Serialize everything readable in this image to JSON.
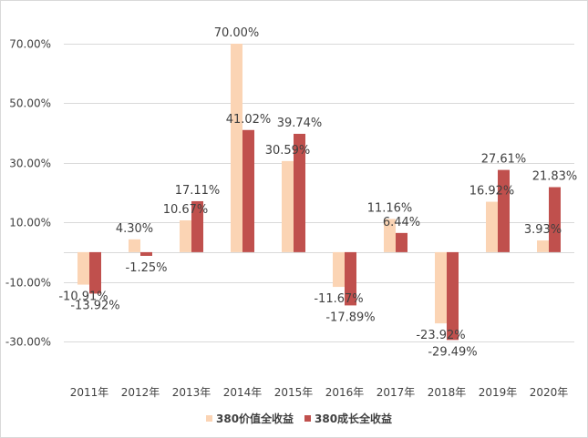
{
  "chart_data": {
    "type": "bar",
    "title": "",
    "xlabel": "",
    "ylabel": "",
    "categories": [
      "2011年",
      "2012年",
      "2013年",
      "2014年",
      "2015年",
      "2016年",
      "2017年",
      "2018年",
      "2019年",
      "2020年"
    ],
    "series": [
      {
        "name": "380价值全收益",
        "color": "#fbd4b4",
        "values": [
          -10.91,
          4.3,
          10.67,
          70.0,
          30.59,
          -11.67,
          11.16,
          -23.92,
          16.92,
          3.93
        ],
        "labels": [
          "-10.91%",
          "4.30%",
          "10.67%",
          "70.00%",
          "30.59%",
          "-11.67%",
          "11.16%",
          "-23.92%",
          "16.92%",
          "3.93%"
        ]
      },
      {
        "name": "380成长全收益",
        "color": "#c0504d",
        "values": [
          -13.92,
          -1.25,
          17.11,
          41.02,
          39.74,
          -17.89,
          6.44,
          -29.49,
          27.61,
          21.83
        ],
        "labels": [
          "-13.92%",
          "-1.25%",
          "17.11%",
          "41.02%",
          "39.74%",
          "-17.89%",
          "6.44%",
          "-29.49%",
          "27.61%",
          "21.83%"
        ]
      }
    ],
    "y_ticks": [
      70,
      50,
      30,
      10,
      -10,
      -30
    ],
    "y_tick_labels": [
      "70.00%",
      "50.00%",
      "30.00%",
      "10.00%",
      "-10.00%",
      "-30.00%"
    ],
    "ylim": [
      -30,
      70
    ],
    "grid": true,
    "legend": "bottom-center"
  }
}
